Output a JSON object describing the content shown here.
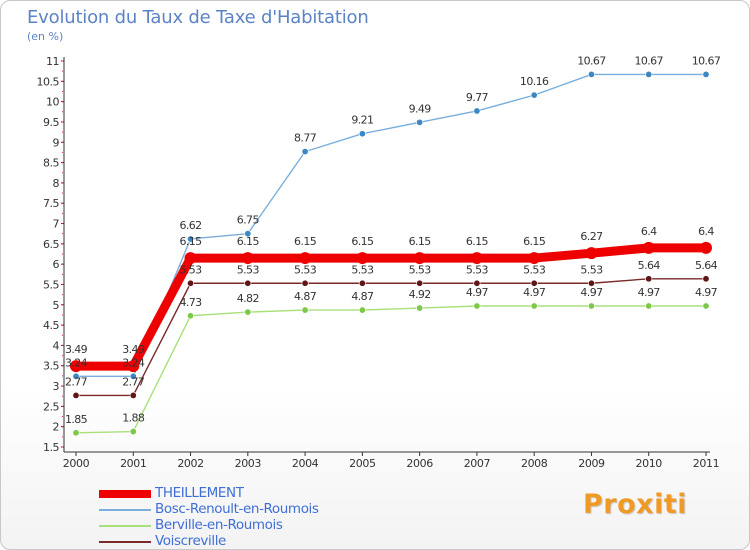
{
  "title": "Evolution du Taux de Taxe d'Habitation",
  "subtitle": "(en %)",
  "brand": "Proxiti",
  "chart_data": {
    "type": "line",
    "x": [
      "2000",
      "2001",
      "2002",
      "2003",
      "2004",
      "2005",
      "2006",
      "2007",
      "2008",
      "2009",
      "2010",
      "2011"
    ],
    "ylim": [
      1.5,
      11
    ],
    "yticks": [
      "1.5",
      "2",
      "2.5",
      "3",
      "3.5",
      "4",
      "4.5",
      "5",
      "5.5",
      "6",
      "6.5",
      "7",
      "7.5",
      "8",
      "8.5",
      "9",
      "9.5",
      "10",
      "10.5",
      "11"
    ],
    "grid": false,
    "legend_position": "bottom-left",
    "series": [
      {
        "name": "THEILLEMENT",
        "values": [
          3.49,
          3.49,
          6.15,
          6.15,
          6.15,
          6.15,
          6.15,
          6.15,
          6.15,
          6.27,
          6.4,
          6.4
        ],
        "labels": [
          "3.49",
          "3.49",
          "6.15",
          "6.15",
          "6.15",
          "6.15",
          "6.15",
          "6.15",
          "6.15",
          "6.27",
          "6.4",
          "6.4"
        ],
        "color": "#ee0000",
        "marker_fill": "#ee0000"
      },
      {
        "name": "Bosc-Renoult-en-Roumois",
        "values": [
          3.24,
          3.24,
          6.62,
          6.75,
          8.77,
          9.21,
          9.49,
          9.77,
          10.16,
          10.67,
          10.67,
          10.67
        ],
        "labels": [
          "3.24",
          "3.24",
          "6.62",
          "6.75",
          "8.77",
          "9.21",
          "9.49",
          "9.77",
          "10.16",
          "10.67",
          "10.67",
          "10.67"
        ],
        "color": "#7aaedc",
        "marker_fill": "#3d87c4"
      },
      {
        "name": "Berville-en-Roumois",
        "values": [
          1.85,
          1.88,
          4.73,
          4.82,
          4.87,
          4.87,
          4.92,
          4.97,
          4.97,
          4.97,
          4.97,
          4.97
        ],
        "labels": [
          "1.85",
          "1.88",
          "4.73",
          "4.82",
          "4.87",
          "4.87",
          "4.92",
          "4.97",
          "4.97",
          "4.97",
          "4.97",
          "4.97"
        ],
        "color": "#a8e07a",
        "marker_fill": "#7cc94a"
      },
      {
        "name": "Voiscreville",
        "values": [
          2.77,
          2.77,
          5.53,
          5.53,
          5.53,
          5.53,
          5.53,
          5.53,
          5.53,
          5.53,
          5.64,
          5.64
        ],
        "labels": [
          "2.77",
          "2.77",
          "5.53",
          "5.53",
          "5.53",
          "5.53",
          "5.53",
          "5.53",
          "5.53",
          "5.53",
          "5.64",
          "5.64"
        ],
        "color": "#7a2a2a",
        "marker_fill": "#5e1616"
      }
    ]
  }
}
